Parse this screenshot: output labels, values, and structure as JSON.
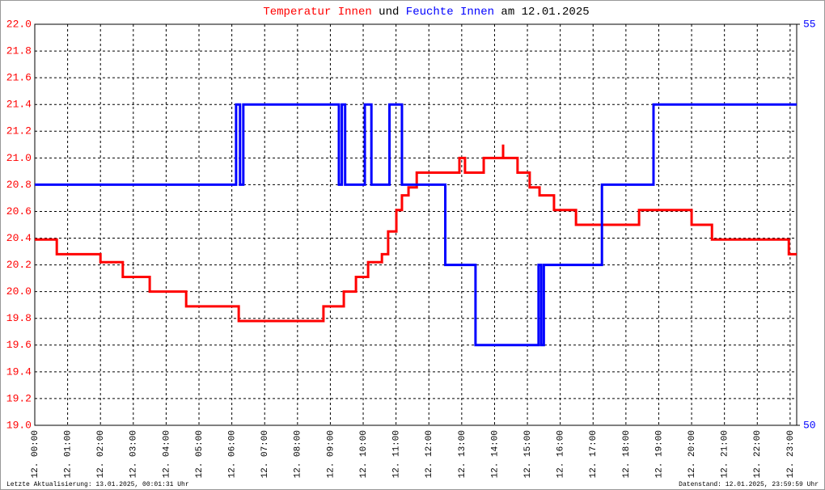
{
  "chart_data": {
    "type": "line",
    "title": [
      "Temperatur Innen",
      "und",
      "Feuchte Innen",
      "am 12.01.2025"
    ],
    "footer_left": "Letzte Aktualisierung: 13.01.2025, 00:01:31 Uhr",
    "footer_right": "Datenstand: 12.01.2025, 23:59:59 Uhr",
    "grid": true,
    "xlim": [
      0,
      23.2
    ],
    "xticks": [
      {
        "value": 0,
        "label": "12. 00:00"
      },
      {
        "value": 1,
        "label": "12. 01:00"
      },
      {
        "value": 2,
        "label": "12. 02:00"
      },
      {
        "value": 3,
        "label": "12. 03:00"
      },
      {
        "value": 4,
        "label": "12. 04:00"
      },
      {
        "value": 5,
        "label": "12. 05:00"
      },
      {
        "value": 6,
        "label": "12. 06:00"
      },
      {
        "value": 7,
        "label": "12. 07:00"
      },
      {
        "value": 8,
        "label": "12. 08:00"
      },
      {
        "value": 9,
        "label": "12. 09:00"
      },
      {
        "value": 10,
        "label": "12. 10:00"
      },
      {
        "value": 11,
        "label": "12. 11:00"
      },
      {
        "value": 12,
        "label": "12. 12:00"
      },
      {
        "value": 13,
        "label": "12. 13:00"
      },
      {
        "value": 14,
        "label": "12. 14:00"
      },
      {
        "value": 15,
        "label": "12. 15:00"
      },
      {
        "value": 16,
        "label": "12. 16:00"
      },
      {
        "value": 17,
        "label": "12. 17:00"
      },
      {
        "value": 18,
        "label": "12. 18:00"
      },
      {
        "value": 19,
        "label": "12. 19:00"
      },
      {
        "value": 20,
        "label": "12. 20:00"
      },
      {
        "value": 21,
        "label": "12. 21:00"
      },
      {
        "value": 22,
        "label": "12. 22:00"
      },
      {
        "value": 23,
        "label": "12. 23:00"
      }
    ],
    "ylim": [
      19,
      22
    ],
    "yticks": [
      {
        "value": 19,
        "label": "19.0"
      },
      19.2,
      19.4,
      19.6,
      19.8,
      {
        "value": 20,
        "label": "20.0"
      },
      20.2,
      20.4,
      20.6,
      20.8,
      {
        "value": 21,
        "label": "21.0"
      },
      21.2,
      21.4,
      21.6,
      21.8,
      {
        "value": 22,
        "label": "22.0"
      }
    ],
    "y2lim": [
      50,
      55
    ],
    "y2ticks": [
      50,
      55
    ],
    "series": [
      {
        "name": "Temperatur Innen",
        "color": "#ff0000",
        "x": [
          0,
          0.67,
          0.67,
          2.0,
          2.0,
          2.68,
          2.68,
          3.5,
          3.5,
          4.61,
          4.61,
          6.21,
          6.21,
          8.79,
          8.79,
          9.41,
          9.41,
          9.78,
          9.78,
          10.15,
          10.15,
          10.57,
          10.57,
          10.76,
          10.76,
          11.01,
          11.01,
          11.18,
          11.18,
          11.38,
          11.38,
          11.63,
          11.63,
          12.93,
          12.93,
          13.1,
          13.1,
          13.67,
          13.67,
          14.26,
          14.26,
          14.26,
          14.7,
          14.7,
          15.07,
          15.07,
          15.37,
          15.37,
          15.81,
          15.81,
          16.48,
          16.48,
          18.4,
          18.4,
          20.0,
          20.0,
          20.62,
          20.62,
          22.96,
          22.96,
          23.2
        ],
        "values": [
          20.39,
          20.39,
          20.28,
          20.28,
          20.22,
          20.22,
          20.11,
          20.11,
          20.0,
          20.0,
          19.89,
          19.89,
          19.78,
          19.78,
          19.89,
          19.89,
          20.0,
          20.0,
          20.11,
          20.11,
          20.22,
          20.22,
          20.28,
          20.28,
          20.45,
          20.45,
          20.61,
          20.61,
          20.72,
          20.72,
          20.78,
          20.78,
          20.89,
          20.89,
          21.0,
          21.0,
          20.89,
          20.89,
          21.0,
          21.0,
          21.1,
          21.0,
          21.0,
          20.89,
          20.89,
          20.78,
          20.78,
          20.72,
          20.72,
          20.61,
          20.61,
          20.5,
          20.5,
          20.61,
          20.61,
          20.5,
          20.5,
          20.39,
          20.39,
          20.28,
          20.28
        ]
      },
      {
        "name": "Feuchte Innen",
        "color": "#0000ff",
        "axis": "y2",
        "x": [
          0,
          6.13,
          6.13,
          6.25,
          6.25,
          6.35,
          6.35,
          9.26,
          9.26,
          9.35,
          9.35,
          9.45,
          9.45,
          10.05,
          10.05,
          10.25,
          10.25,
          10.8,
          10.8,
          11.18,
          11.18,
          12.5,
          12.5,
          13.42,
          13.42,
          15.34,
          15.34,
          15.42,
          15.42,
          15.5,
          15.5,
          17.27,
          17.27,
          18.84,
          18.84,
          23.2
        ],
        "values": [
          53,
          53,
          54,
          54,
          53,
          53,
          54,
          54,
          53,
          53,
          54,
          54,
          53,
          53,
          54,
          54,
          53,
          53,
          54,
          54,
          53,
          53,
          52,
          52,
          51,
          51,
          52,
          52,
          51,
          51,
          52,
          52,
          53,
          53,
          54,
          54
        ]
      }
    ]
  }
}
